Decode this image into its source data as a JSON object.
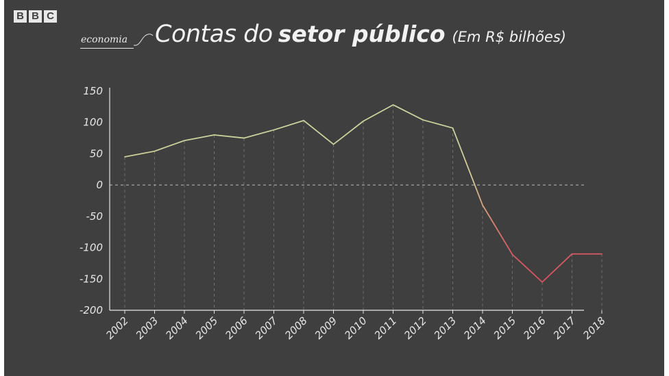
{
  "brand": {
    "logo_letters": [
      "B",
      "B",
      "C"
    ],
    "tag": "economia"
  },
  "title": {
    "light": "Contas do",
    "bold": "setor público",
    "unit": "(Em R$ bilhões)"
  },
  "colors": {
    "background": "#3f3f3f",
    "positive_line": "#c8d8a0",
    "negative_line": "#d9515f"
  },
  "chart_data": {
    "type": "line",
    "categories": [
      "2002",
      "2003",
      "2004",
      "2005",
      "2006",
      "2007",
      "2008",
      "2009",
      "2010",
      "2011",
      "2012",
      "2013",
      "2014",
      "2015",
      "2016",
      "2017",
      "2018"
    ],
    "series": [
      {
        "values": [
          45,
          54,
          71,
          80,
          75,
          88,
          103,
          65,
          102,
          128,
          104,
          91,
          -32,
          -111,
          -155,
          -110,
          -110
        ]
      }
    ],
    "yticks": [
      150,
      100,
      50,
      0,
      -50,
      -100,
      -150,
      -200
    ],
    "ylim": [
      -200,
      150
    ],
    "grid": "vertical dashed lines at each year, dashed zero line",
    "legend": "none"
  }
}
